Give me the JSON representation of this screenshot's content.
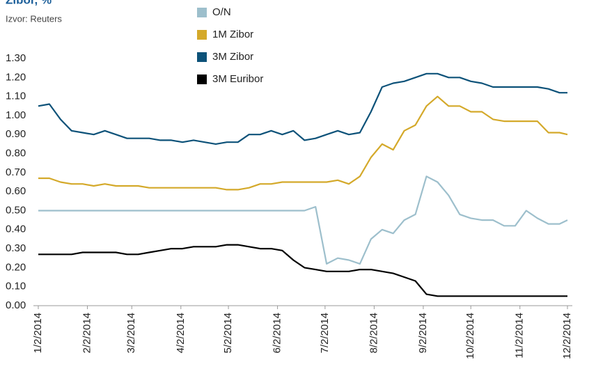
{
  "chart_data": {
    "type": "line",
    "title": "Zibor, %",
    "source": "Izvor: Reuters",
    "x": [
      "2014-01-02",
      "2014-01-09",
      "2014-01-16",
      "2014-01-23",
      "2014-01-30",
      "2014-02-06",
      "2014-02-13",
      "2014-02-20",
      "2014-02-27",
      "2014-03-06",
      "2014-03-13",
      "2014-03-20",
      "2014-03-27",
      "2014-04-03",
      "2014-04-10",
      "2014-04-17",
      "2014-04-24",
      "2014-05-01",
      "2014-05-08",
      "2014-05-15",
      "2014-05-22",
      "2014-05-29",
      "2014-06-05",
      "2014-06-12",
      "2014-06-19",
      "2014-06-26",
      "2014-07-03",
      "2014-07-10",
      "2014-07-17",
      "2014-07-24",
      "2014-07-31",
      "2014-08-07",
      "2014-08-14",
      "2014-08-21",
      "2014-08-28",
      "2014-09-04",
      "2014-09-11",
      "2014-09-18",
      "2014-09-25",
      "2014-10-02",
      "2014-10-09",
      "2014-10-16",
      "2014-10-23",
      "2014-10-30",
      "2014-11-06",
      "2014-11-13",
      "2014-11-20",
      "2014-11-27",
      "2014-12-02"
    ],
    "series": [
      {
        "name": "O/N",
        "color": "#9dbfcc",
        "values": [
          0.5,
          0.5,
          0.5,
          0.5,
          0.5,
          0.5,
          0.5,
          0.5,
          0.5,
          0.5,
          0.5,
          0.5,
          0.5,
          0.5,
          0.5,
          0.5,
          0.5,
          0.5,
          0.5,
          0.5,
          0.5,
          0.5,
          0.5,
          0.5,
          0.5,
          0.52,
          0.22,
          0.25,
          0.24,
          0.22,
          0.35,
          0.4,
          0.38,
          0.45,
          0.48,
          0.68,
          0.65,
          0.58,
          0.48,
          0.46,
          0.45,
          0.45,
          0.42,
          0.42,
          0.5,
          0.46,
          0.43,
          0.43,
          0.45
        ]
      },
      {
        "name": "1M Zibor",
        "color": "#d4a92a",
        "values": [
          0.67,
          0.67,
          0.65,
          0.64,
          0.64,
          0.63,
          0.64,
          0.63,
          0.63,
          0.63,
          0.62,
          0.62,
          0.62,
          0.62,
          0.62,
          0.62,
          0.62,
          0.61,
          0.61,
          0.62,
          0.64,
          0.64,
          0.65,
          0.65,
          0.65,
          0.65,
          0.65,
          0.66,
          0.64,
          0.68,
          0.78,
          0.85,
          0.82,
          0.92,
          0.95,
          1.05,
          1.1,
          1.05,
          1.05,
          1.02,
          1.02,
          0.98,
          0.97,
          0.97,
          0.97,
          0.97,
          0.91,
          0.91,
          0.9
        ]
      },
      {
        "name": "3M Zibor",
        "color": "#0d5279",
        "values": [
          1.05,
          1.06,
          0.98,
          0.92,
          0.91,
          0.9,
          0.92,
          0.9,
          0.88,
          0.88,
          0.88,
          0.87,
          0.87,
          0.86,
          0.87,
          0.86,
          0.85,
          0.86,
          0.86,
          0.9,
          0.9,
          0.92,
          0.9,
          0.92,
          0.87,
          0.88,
          0.9,
          0.92,
          0.9,
          0.91,
          1.02,
          1.15,
          1.17,
          1.18,
          1.2,
          1.22,
          1.22,
          1.2,
          1.2,
          1.18,
          1.17,
          1.15,
          1.15,
          1.15,
          1.15,
          1.15,
          1.14,
          1.12,
          1.12
        ]
      },
      {
        "name": "3M Euribor",
        "color": "#000000",
        "values": [
          0.27,
          0.27,
          0.27,
          0.27,
          0.28,
          0.28,
          0.28,
          0.28,
          0.27,
          0.27,
          0.28,
          0.29,
          0.3,
          0.3,
          0.31,
          0.31,
          0.31,
          0.32,
          0.32,
          0.31,
          0.3,
          0.3,
          0.29,
          0.24,
          0.2,
          0.19,
          0.18,
          0.18,
          0.18,
          0.19,
          0.19,
          0.18,
          0.17,
          0.15,
          0.13,
          0.06,
          0.05,
          0.05,
          0.05,
          0.05,
          0.05,
          0.05,
          0.05,
          0.05,
          0.05,
          0.05,
          0.05,
          0.05,
          0.05
        ]
      }
    ],
    "xlim": [
      "2014-01-02",
      "2014-12-02"
    ],
    "xticks": [
      {
        "value": "2014-01-02",
        "label": "1/2/2014"
      },
      {
        "value": "2014-02-02",
        "label": "2/2/2014"
      },
      {
        "value": "2014-03-02",
        "label": "3/2/2014"
      },
      {
        "value": "2014-04-02",
        "label": "4/2/2014"
      },
      {
        "value": "2014-05-02",
        "label": "5/2/2014"
      },
      {
        "value": "2014-06-02",
        "label": "6/2/2014"
      },
      {
        "value": "2014-07-02",
        "label": "7/2/2014"
      },
      {
        "value": "2014-08-02",
        "label": "8/2/2014"
      },
      {
        "value": "2014-09-02",
        "label": "9/2/2014"
      },
      {
        "value": "2014-10-02",
        "label": "10/2/2014"
      },
      {
        "value": "2014-11-02",
        "label": "11/2/2014"
      },
      {
        "value": "2014-12-02",
        "label": "12/2/2014"
      }
    ],
    "ylim": [
      0,
      1.3
    ],
    "yticks": [
      {
        "value": 0,
        "label": "0.00"
      },
      {
        "value": 0.1,
        "label": "0.10"
      },
      {
        "value": 0.2,
        "label": "0.20"
      },
      {
        "value": 0.3,
        "label": "0.30"
      },
      {
        "value": 0.4,
        "label": "0.40"
      },
      {
        "value": 0.5,
        "label": "0.50"
      },
      {
        "value": 0.6,
        "label": "0.60"
      },
      {
        "value": 0.7,
        "label": "0.70"
      },
      {
        "value": 0.8,
        "label": "0.80"
      },
      {
        "value": 0.9,
        "label": "0.90"
      },
      {
        "value": 1.0,
        "label": "1.00"
      },
      {
        "value": 1.1,
        "label": "1.10"
      },
      {
        "value": 1.2,
        "label": "1.20"
      },
      {
        "value": 1.3,
        "label": "1.30"
      }
    ],
    "grid": false
  }
}
